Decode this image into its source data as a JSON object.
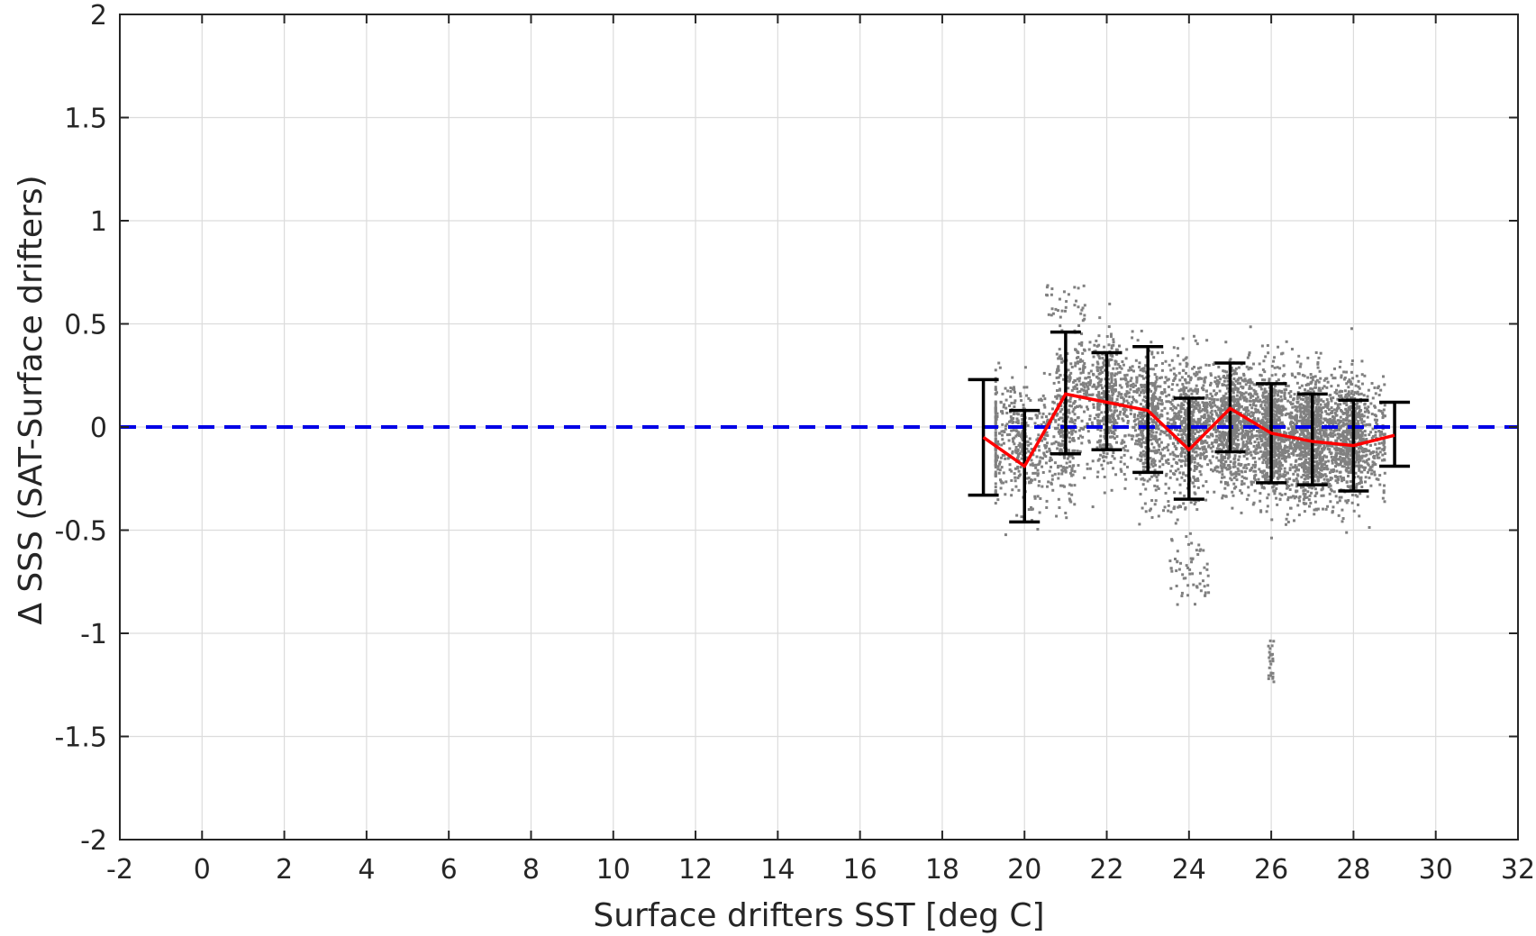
{
  "chart_data": {
    "type": "scatter",
    "xlabel": "Surface drifters SST [deg C]",
    "ylabel": "Δ SSS (SAT-Surface drifters)",
    "xlim": [
      -2,
      32
    ],
    "ylim": [
      -2,
      2
    ],
    "x_ticks": [
      "-2",
      "0",
      "2",
      "4",
      "6",
      "8",
      "10",
      "12",
      "14",
      "16",
      "18",
      "20",
      "22",
      "24",
      "26",
      "28",
      "30",
      "32"
    ],
    "y_ticks": [
      "2",
      "1.5",
      "1",
      "0.5",
      "0",
      "-0.5",
      "-1",
      "-1.5",
      "-2"
    ],
    "grid": true,
    "reference_line": {
      "y": 0,
      "style": "dashed",
      "color": "#0000e6"
    },
    "scatter_color": "#808080",
    "mean_line_color": "#ff0000",
    "errorbar_color": "#000000",
    "scatter_clusters": [
      {
        "x": 19.5,
        "y": -0.05,
        "sx": 0.35,
        "sy": 0.22,
        "n": 260
      },
      {
        "x": 20.5,
        "y": -0.1,
        "sx": 0.45,
        "sy": 0.22,
        "n": 320
      },
      {
        "x": 21.5,
        "y": 0.15,
        "sx": 0.45,
        "sy": 0.24,
        "n": 420
      },
      {
        "x": 22.5,
        "y": 0.1,
        "sx": 0.45,
        "sy": 0.22,
        "n": 480
      },
      {
        "x": 23.5,
        "y": -0.02,
        "sx": 0.45,
        "sy": 0.25,
        "n": 520
      },
      {
        "x": 24.5,
        "y": 0.02,
        "sx": 0.45,
        "sy": 0.2,
        "n": 620
      },
      {
        "x": 25.5,
        "y": 0.0,
        "sx": 0.45,
        "sy": 0.22,
        "n": 800
      },
      {
        "x": 26.5,
        "y": -0.05,
        "sx": 0.45,
        "sy": 0.22,
        "n": 950
      },
      {
        "x": 27.5,
        "y": -0.05,
        "sx": 0.45,
        "sy": 0.22,
        "n": 900
      },
      {
        "x": 28.3,
        "y": -0.05,
        "sx": 0.3,
        "sy": 0.2,
        "n": 300
      },
      {
        "x": 24.0,
        "y": -0.7,
        "sx": 0.3,
        "sy": 0.12,
        "n": 60
      },
      {
        "x": 26.0,
        "y": -1.15,
        "sx": 0.05,
        "sy": 0.1,
        "n": 25
      },
      {
        "x": 21.0,
        "y": 0.6,
        "sx": 0.3,
        "sy": 0.07,
        "n": 35
      }
    ],
    "series": [
      {
        "kind": "mean_with_errorbars",
        "x": [
          19,
          20,
          21,
          22,
          23,
          24,
          25,
          26,
          27,
          28,
          29
        ],
        "mean": [
          -0.05,
          -0.19,
          0.16,
          0.12,
          0.08,
          -0.11,
          0.09,
          -0.03,
          -0.07,
          -0.09,
          -0.04
        ],
        "lower": [
          -0.33,
          -0.46,
          -0.13,
          -0.11,
          -0.22,
          -0.35,
          -0.12,
          -0.27,
          -0.28,
          -0.31,
          -0.19
        ],
        "upper": [
          0.23,
          0.08,
          0.46,
          0.36,
          0.39,
          0.14,
          0.31,
          0.21,
          0.16,
          0.13,
          0.12
        ]
      }
    ]
  }
}
